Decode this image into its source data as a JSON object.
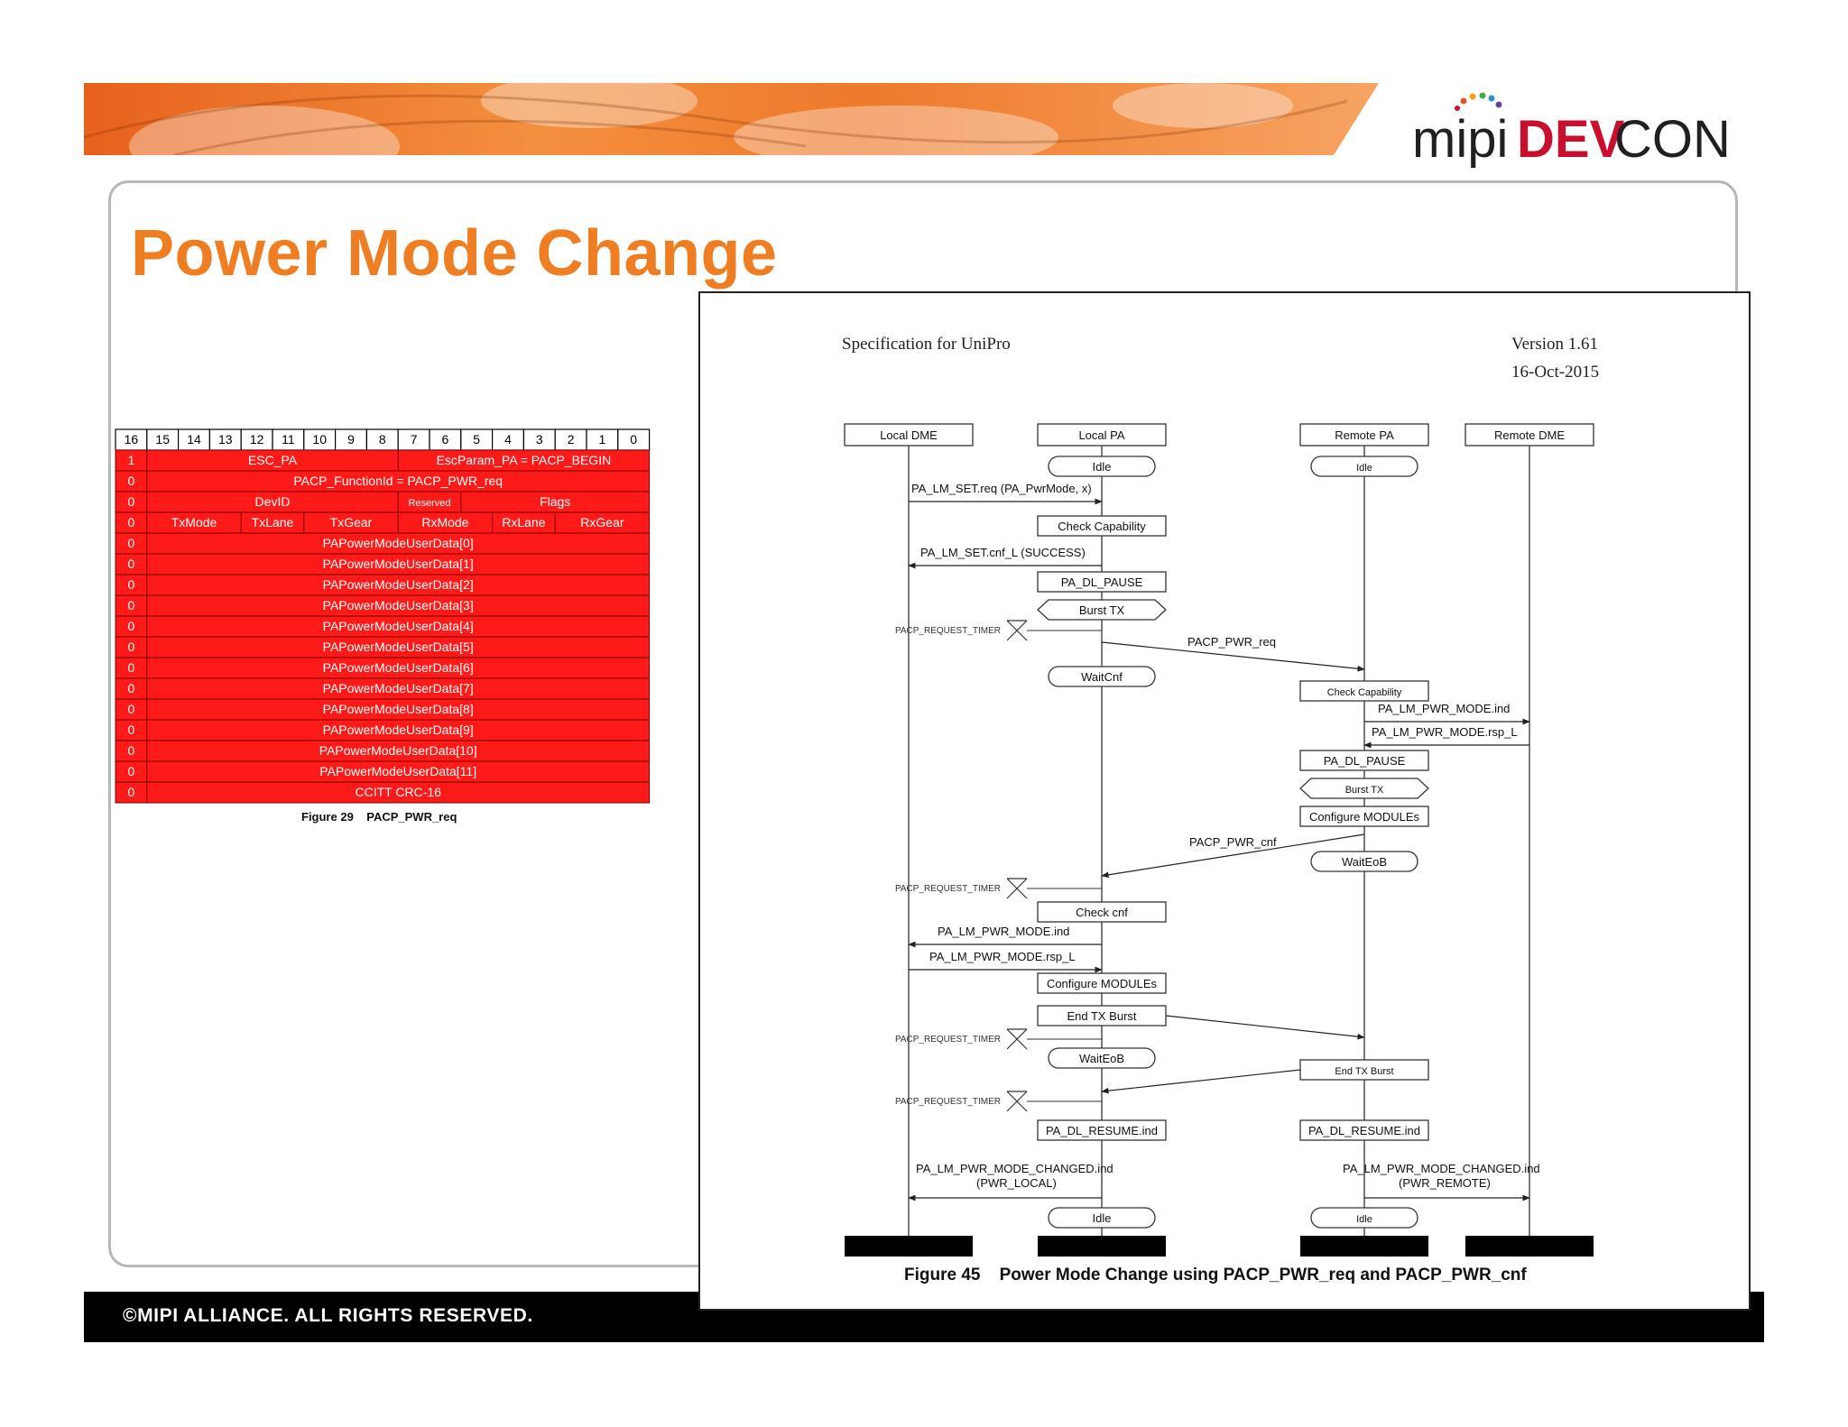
{
  "slide": {
    "title": "Power Mode Change",
    "copyright": "©MIPI ALLIANCE. ALL RIGHTS RESERVED.",
    "colors": {
      "title": "#ef7d22",
      "brand_red": "#c8102e",
      "table_red": "#ff1a1a"
    }
  },
  "logo": {
    "text_mipi": "mipi",
    "text_dev": "DEV",
    "text_con": "CON"
  },
  "packet": {
    "caption": "Figure 29    PACP_PWR_req",
    "bit_headers": [
      "16",
      "15",
      "14",
      "13",
      "12",
      "11",
      "10",
      "9",
      "8",
      "7",
      "6",
      "5",
      "4",
      "3",
      "2",
      "1",
      "0"
    ],
    "rows": [
      {
        "flag": "1",
        "fields": [
          "ESC_PA",
          "EscParam_PA = PACP_BEGIN"
        ]
      },
      {
        "flag": "0",
        "fields": [
          "PACP_FunctionId = PACP_PWR_req"
        ]
      },
      {
        "flag": "0",
        "fields": [
          "DevID",
          "Reserved",
          "Flags"
        ]
      },
      {
        "flag": "0",
        "fields": [
          "TxMode",
          "TxLane",
          "TxGear",
          "RxMode",
          "RxLane",
          "RxGear"
        ]
      },
      {
        "flag": "0",
        "fields": [
          "PAPowerModeUserData[0]"
        ]
      },
      {
        "flag": "0",
        "fields": [
          "PAPowerModeUserData[1]"
        ]
      },
      {
        "flag": "0",
        "fields": [
          "PAPowerModeUserData[2]"
        ]
      },
      {
        "flag": "0",
        "fields": [
          "PAPowerModeUserData[3]"
        ]
      },
      {
        "flag": "0",
        "fields": [
          "PAPowerModeUserData[4]"
        ]
      },
      {
        "flag": "0",
        "fields": [
          "PAPowerModeUserData[5]"
        ]
      },
      {
        "flag": "0",
        "fields": [
          "PAPowerModeUserData[6]"
        ]
      },
      {
        "flag": "0",
        "fields": [
          "PAPowerModeUserData[7]"
        ]
      },
      {
        "flag": "0",
        "fields": [
          "PAPowerModeUserData[8]"
        ]
      },
      {
        "flag": "0",
        "fields": [
          "PAPowerModeUserData[9]"
        ]
      },
      {
        "flag": "0",
        "fields": [
          "PAPowerModeUserData[10]"
        ]
      },
      {
        "flag": "0",
        "fields": [
          "PAPowerModeUserData[11]"
        ]
      },
      {
        "flag": "0",
        "fields": [
          "CCITT CRC-16"
        ]
      }
    ]
  },
  "spec": {
    "title": "Specification for UniPro",
    "version": "Version 1.61",
    "date": "16-Oct-2015",
    "caption": "Figure 45    Power Mode Change using PACP_PWR_req and PACP_PWR_cnf"
  },
  "sequence": {
    "participants": [
      "Local DME",
      "Local PA",
      "Remote PA",
      "Remote DME"
    ],
    "states": [
      {
        "lane": 1,
        "label": "Idle",
        "shape": "oval"
      },
      {
        "lane": 2,
        "label": "Idle",
        "shape": "oval"
      },
      {
        "lane": 1,
        "label": "Check Capability",
        "shape": "rect"
      },
      {
        "lane": 1,
        "label": "PA_DL_PAUSE",
        "shape": "rect"
      },
      {
        "lane": 1,
        "label": "Burst TX",
        "shape": "hex"
      },
      {
        "lane": 1,
        "label": "WaitCnf",
        "shape": "oval"
      },
      {
        "lane": 2,
        "label": "Check Capability",
        "shape": "rect"
      },
      {
        "lane": 2,
        "label": "PA_DL_PAUSE",
        "shape": "rect"
      },
      {
        "lane": 2,
        "label": "Burst TX",
        "shape": "hex"
      },
      {
        "lane": 2,
        "label": "Configure MODULEs",
        "shape": "rect"
      },
      {
        "lane": 2,
        "label": "WaitEoB",
        "shape": "oval"
      },
      {
        "lane": 1,
        "label": "Check cnf",
        "shape": "rect"
      },
      {
        "lane": 1,
        "label": "Configure MODULEs",
        "shape": "rect"
      },
      {
        "lane": 1,
        "label": "End TX Burst",
        "shape": "rect"
      },
      {
        "lane": 1,
        "label": "WaitEoB",
        "shape": "oval"
      },
      {
        "lane": 2,
        "label": "End TX Burst",
        "shape": "rect"
      },
      {
        "lane": 1,
        "label": "PA_DL_RESUME.ind",
        "shape": "rect"
      },
      {
        "lane": 2,
        "label": "PA_DL_RESUME.ind",
        "shape": "rect"
      },
      {
        "lane": 1,
        "label": "Idle",
        "shape": "oval"
      },
      {
        "lane": 2,
        "label": "Idle",
        "shape": "oval"
      }
    ],
    "messages": [
      {
        "label": "PA_LM_SET.req (PA_PwrMode, x)"
      },
      {
        "label": "PA_LM_SET.cnf_L (SUCCESS)"
      },
      {
        "label": "PACP_PWR_req"
      },
      {
        "label": "PA_LM_PWR_MODE.ind"
      },
      {
        "label": "PA_LM_PWR_MODE.rsp_L"
      },
      {
        "label": "PACP_PWR_cnf"
      },
      {
        "label": "PA_LM_PWR_MODE.ind"
      },
      {
        "label": "PA_LM_PWR_MODE.rsp_L"
      },
      {
        "label": "PA_LM_PWR_MODE_CHANGED.ind"
      },
      {
        "label": "(PWR_LOCAL)"
      },
      {
        "label": "PA_LM_PWR_MODE_CHANGED.ind"
      },
      {
        "label": "(PWR_REMOTE)"
      }
    ],
    "timers": [
      "PACP_REQUEST_TIMER",
      "PACP_REQUEST_TIMER",
      "PACP_REQUEST_TIMER",
      "PACP_REQUEST_TIMER"
    ]
  }
}
